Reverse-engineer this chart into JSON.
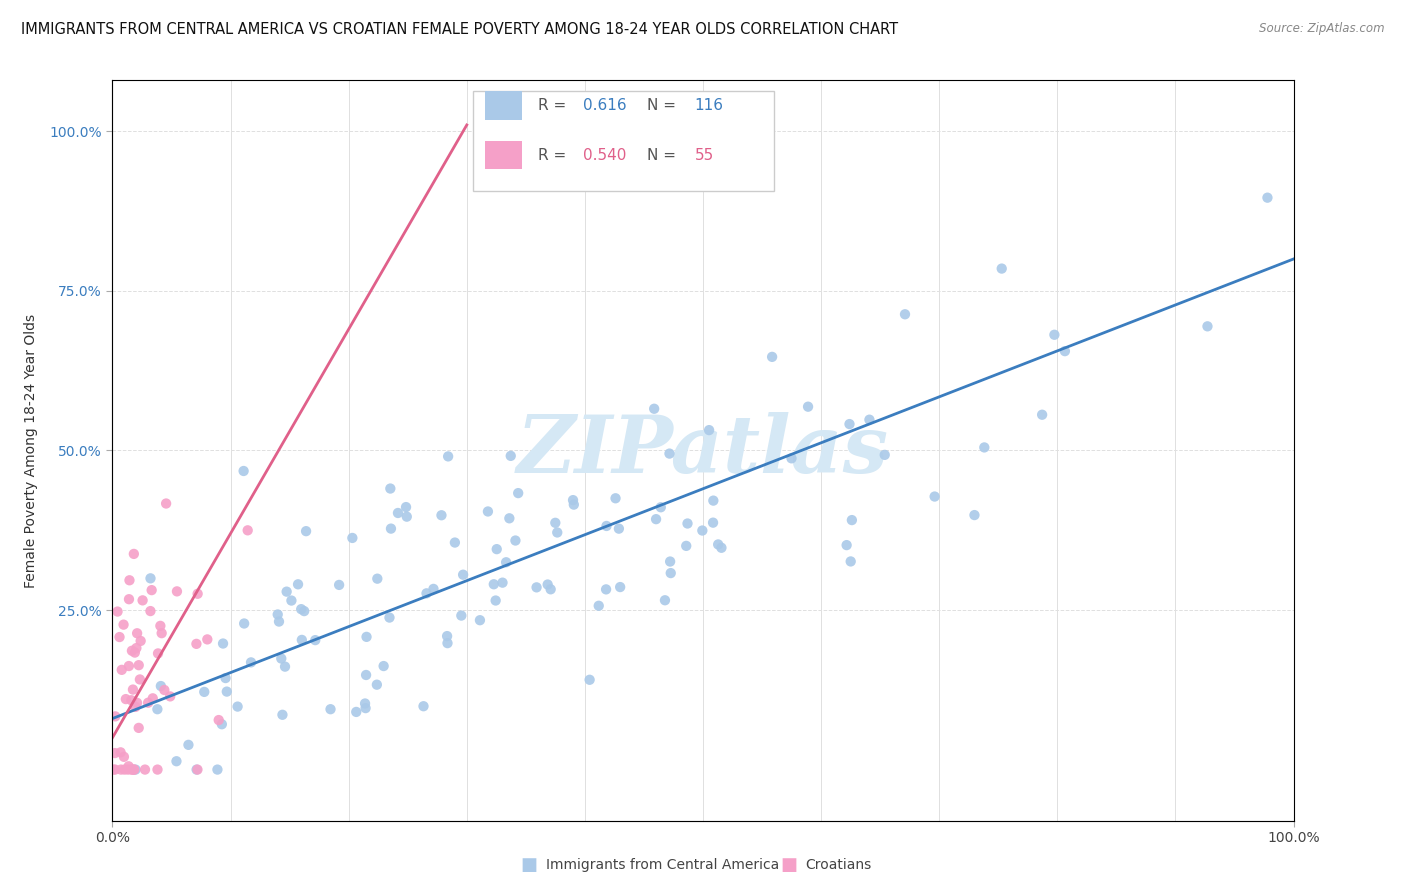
{
  "title": "IMMIGRANTS FROM CENTRAL AMERICA VS CROATIAN FEMALE POVERTY AMONG 18-24 YEAR OLDS CORRELATION CHART",
  "source": "Source: ZipAtlas.com",
  "ylabel": "Female Poverty Among 18-24 Year Olds",
  "blue_label": "Immigrants from Central America",
  "pink_label": "Croatians",
  "blue_R": 0.616,
  "blue_N": 116,
  "pink_R": 0.54,
  "pink_N": 55,
  "blue_color": "#aac9e8",
  "pink_color": "#f5a0c8",
  "blue_line_color": "#3b7dbf",
  "pink_line_color": "#e0608a",
  "watermark_color": "#d5e8f5",
  "xmin": 0.0,
  "xmax": 1.0,
  "ymin": -0.08,
  "ymax": 1.08,
  "ytick_labels": [
    "25.0%",
    "50.0%",
    "75.0%",
    "100.0%"
  ],
  "ytick_vals": [
    0.25,
    0.5,
    0.75,
    1.0
  ],
  "background_color": "#ffffff",
  "grid_color": "#e0e0e0",
  "title_fontsize": 10.5,
  "ylabel_fontsize": 10,
  "legend_fontsize": 11,
  "marker_size": 55,
  "seed_blue": 42,
  "seed_pink": 7,
  "blue_slope": 0.72,
  "blue_intercept": 0.08,
  "pink_slope": 3.2,
  "pink_intercept": 0.05
}
